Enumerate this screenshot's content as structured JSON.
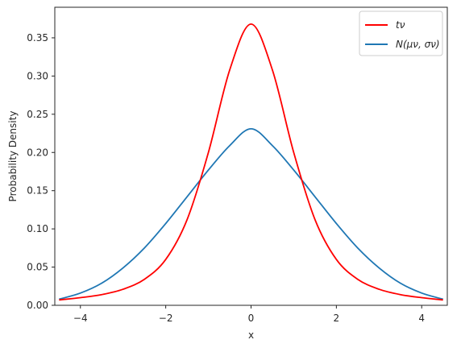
{
  "chart_data": {
    "type": "line",
    "title": "",
    "xlabel": "x",
    "ylabel": "Probability Density",
    "xlim": [
      -4.6,
      4.6
    ],
    "ylim": [
      0.0,
      0.39
    ],
    "xticks": [
      -4,
      -2,
      0,
      2,
      4
    ],
    "xtick_labels": [
      "−4",
      "−2",
      "0",
      "2",
      "4"
    ],
    "yticks": [
      0.0,
      0.05,
      0.1,
      0.15,
      0.2,
      0.25,
      0.3,
      0.35
    ],
    "ytick_labels": [
      "0.00",
      "0.05",
      "0.10",
      "0.15",
      "0.20",
      "0.25",
      "0.30",
      "0.35"
    ],
    "grid": false,
    "legend_position": "top-right",
    "series": [
      {
        "name": "tν",
        "color": "#ff0000",
        "x": [
          -4.5,
          -4.0,
          -3.5,
          -3.0,
          -2.5,
          -2.0,
          -1.5,
          -1.0,
          -0.5,
          0.0,
          0.5,
          1.0,
          1.5,
          2.0,
          2.5,
          3.0,
          3.5,
          4.0,
          4.5
        ],
        "y": [
          0.007,
          0.01,
          0.014,
          0.021,
          0.034,
          0.06,
          0.112,
          0.2,
          0.308,
          0.368,
          0.308,
          0.2,
          0.112,
          0.06,
          0.034,
          0.021,
          0.014,
          0.01,
          0.007
        ]
      },
      {
        "name": "N(μν, σν)",
        "color": "#1f77b4",
        "x": [
          -4.5,
          -4.0,
          -3.5,
          -3.0,
          -2.5,
          -2.0,
          -1.5,
          -1.0,
          -0.5,
          0.0,
          0.5,
          1.0,
          1.5,
          2.0,
          2.5,
          3.0,
          3.5,
          4.0,
          4.5
        ],
        "y": [
          0.008,
          0.016,
          0.029,
          0.049,
          0.075,
          0.107,
          0.142,
          0.177,
          0.209,
          0.231,
          0.209,
          0.177,
          0.142,
          0.107,
          0.075,
          0.049,
          0.029,
          0.016,
          0.008
        ]
      }
    ]
  }
}
